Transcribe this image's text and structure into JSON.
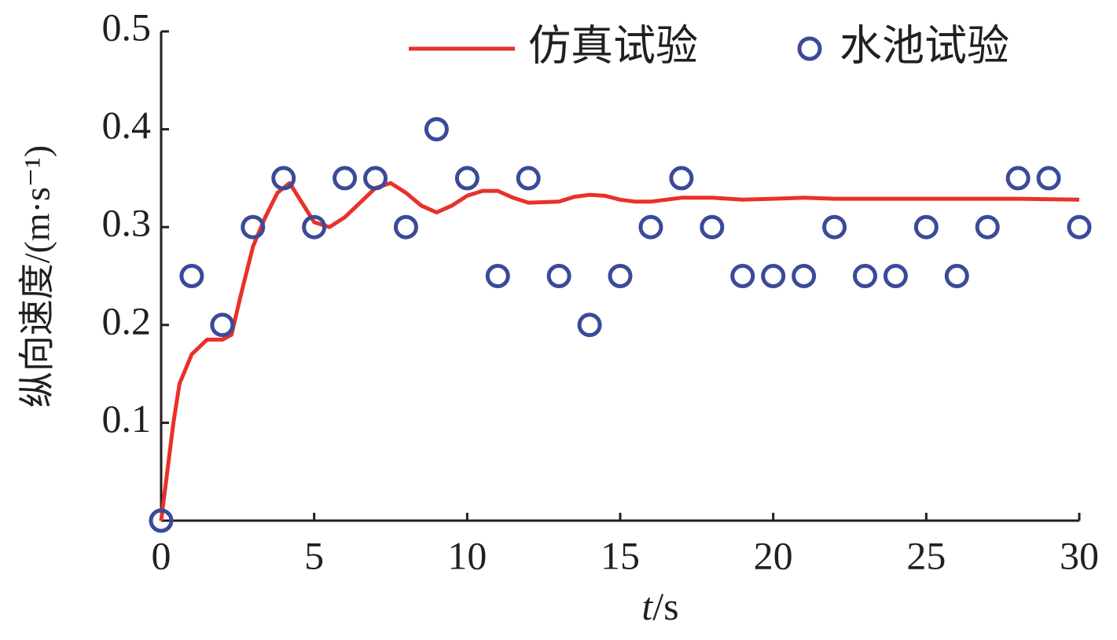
{
  "chart_data": {
    "type": "line",
    "x_label": "t/s",
    "y_label": "纵向速度/(m·s⁻¹)",
    "xlim": [
      0,
      30
    ],
    "xticks": [
      0,
      5,
      10,
      15,
      20,
      25,
      30
    ],
    "ylim": [
      0,
      0.5
    ],
    "yticks": [
      0.1,
      0.2,
      0.3,
      0.4,
      0.5
    ],
    "grid": false,
    "legend": "top-right",
    "series": [
      {
        "name": "仿真试验",
        "color": "#e8312b",
        "style": "line",
        "x": [
          0,
          0.2,
          0.4,
          0.6,
          1.0,
          1.5,
          2.0,
          2.3,
          2.6,
          3.0,
          3.4,
          3.8,
          4.2,
          4.5,
          5.0,
          5.5,
          6.0,
          6.5,
          7.0,
          7.5,
          8.0,
          8.5,
          9.0,
          9.5,
          10.0,
          10.5,
          11.0,
          11.5,
          12.0,
          13.0,
          13.5,
          14.0,
          14.5,
          15.0,
          15.5,
          16.0,
          17.0,
          18.0,
          19.0,
          20.0,
          21.0,
          22.0,
          24.0,
          26.0,
          28.0,
          30.0
        ],
        "values": [
          0,
          0.05,
          0.1,
          0.14,
          0.17,
          0.185,
          0.185,
          0.19,
          0.23,
          0.28,
          0.31,
          0.335,
          0.345,
          0.33,
          0.305,
          0.3,
          0.31,
          0.325,
          0.34,
          0.345,
          0.335,
          0.322,
          0.315,
          0.322,
          0.332,
          0.337,
          0.337,
          0.33,
          0.325,
          0.326,
          0.331,
          0.333,
          0.332,
          0.328,
          0.326,
          0.326,
          0.33,
          0.33,
          0.328,
          0.329,
          0.33,
          0.329,
          0.329,
          0.329,
          0.329,
          0.328
        ]
      },
      {
        "name": "水池试验",
        "color": "#3b4a98",
        "style": "marker",
        "x": [
          0,
          1,
          2,
          3,
          4,
          5,
          6,
          7,
          8,
          9,
          10,
          11,
          12,
          13,
          14,
          15,
          16,
          17,
          18,
          19,
          20,
          21,
          22,
          23,
          24,
          25,
          26,
          27,
          28,
          29,
          30
        ],
        "values": [
          0,
          0.25,
          0.2,
          0.3,
          0.35,
          0.3,
          0.35,
          0.35,
          0.3,
          0.4,
          0.35,
          0.25,
          0.35,
          0.25,
          0.2,
          0.25,
          0.3,
          0.35,
          0.3,
          0.25,
          0.25,
          0.25,
          0.3,
          0.25,
          0.25,
          0.3,
          0.25,
          0.3,
          0.35,
          0.35,
          0.3
        ]
      }
    ]
  }
}
